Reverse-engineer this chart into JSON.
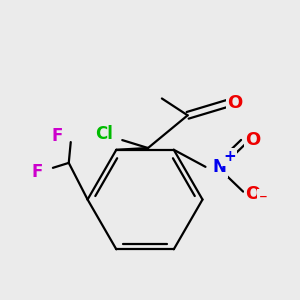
{
  "bg_color": "#ebebeb",
  "bond_color": "#000000",
  "bond_width": 1.6,
  "atom_colors": {
    "C": "#000000",
    "Cl": "#00bb00",
    "F": "#cc00cc",
    "N": "#0000ee",
    "O": "#ee0000"
  },
  "font_size": 12
}
